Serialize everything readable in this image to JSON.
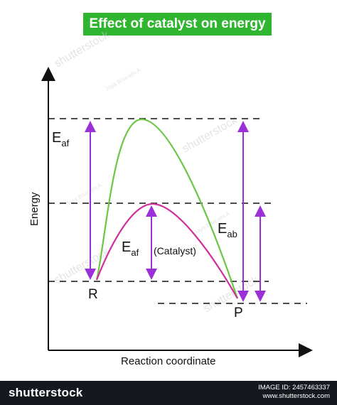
{
  "title": "Effect of catalyst on energy",
  "axes": {
    "y_label": "Energy",
    "x_label": "Reaction coordinate"
  },
  "labels": {
    "reactant": "R",
    "product": "P",
    "ea_forward_main": "E",
    "ea_forward_main_sub": "af",
    "ea_forward_cat": "E",
    "ea_forward_cat_sub": "af",
    "catalyst": "(Catalyst)",
    "ea_backward": "E",
    "ea_backward_sub": "ab"
  },
  "watermark": {
    "brand": "shutterstock",
    "author": "Jaya Bharathi A"
  },
  "footer": {
    "brand": "shutterstock",
    "image_id": "IMAGE ID: 2457463337",
    "site": "www.shutterstock.com"
  },
  "colors": {
    "title_bg": "#2fb52f",
    "uncatalyzed_curve": "#6cc644",
    "catalyzed_curve": "#d0309a",
    "arrows": "#9b30d9",
    "footer_bg": "#16181f"
  }
}
